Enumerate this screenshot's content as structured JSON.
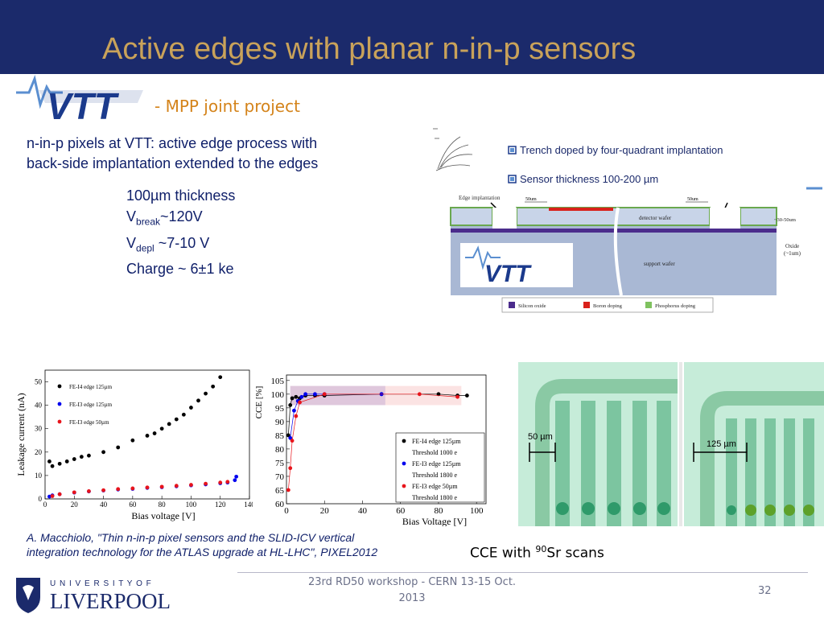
{
  "slide": {
    "title": "Active edges with planar n-in-p sensors",
    "subtitle": "- MPP joint project",
    "intro_line1": "n-in-p pixels at VTT: active edge process with",
    "intro_line2": "back-side implantation extended to the edges",
    "thickness": "100µm thickness",
    "vbreak_V": "V",
    "vbreak_sub": "break",
    "vbreak_val": "~120V",
    "vdepl_V": "V",
    "vdepl_sub": "depl",
    "vdepl_val": " ~7-10 V",
    "charge": "Charge ~ 6±1 ke",
    "citation_line1": "A. Macchiolo, \"Thin n-in-p pixel sensors and the SLID-ICV vertical",
    "citation_line2": "integration technology for the ATLAS upgrade at HL-LHC\", PIXEL2012",
    "cce_pre": "CCE with ",
    "cce_sup": "90",
    "cce_post": "Sr scans",
    "footer_line1": "23rd RD50 workshop - CERN 13-15 Oct.",
    "footer_line2": "2013",
    "page_number": "32",
    "colors": {
      "title_bar": "#1b2a6b",
      "title_text": "#c9a25a",
      "body_text": "#10206a",
      "subtitle": "#d4831a"
    }
  },
  "logos": {
    "vtt_text": "VTT",
    "liverpool_top": "U N I V E R S I T Y   O F",
    "liverpool_bottom": "LIVERPOOL"
  },
  "diagram": {
    "legend_trench": "Trench doped by four-quadrant implantation",
    "legend_thickness": "Sensor thickness 100-200 µm",
    "edge_implantation": "Edge implantation",
    "dim_left": "50um",
    "dim_right": "50um",
    "detector_wafer": "detector wafer",
    "support_wafer": "support wafer",
    "thickness_label": "~30-50um",
    "oxide_label_1": "Oxide",
    "oxide_label_2": "(~1um)",
    "logo_text": "VTT",
    "key_oxide": "Silicon oxide",
    "key_boron": "Boron doping",
    "key_phosphorus": "Phosphorus doping"
  },
  "scan": {
    "label_left": "50 µm",
    "label_right": "125 µm"
  },
  "chart_data": [
    {
      "type": "scatter",
      "xlabel": "Bias voltage [V]",
      "ylabel": "Leakage current (nA)",
      "xlim": [
        0,
        140
      ],
      "ylim": [
        0,
        55
      ],
      "xticks": [
        0,
        20,
        40,
        60,
        80,
        100,
        120,
        140
      ],
      "yticks": [
        0,
        10,
        20,
        30,
        40,
        50
      ],
      "legend_position": "top-left",
      "grid": false,
      "series": [
        {
          "name": "FE-I4 edge 125µm",
          "color": "#000000",
          "x": [
            3,
            5,
            10,
            15,
            20,
            25,
            30,
            40,
            50,
            60,
            70,
            75,
            80,
            85,
            90,
            95,
            100,
            105,
            110,
            115,
            120
          ],
          "y": [
            16,
            14,
            15,
            16,
            17,
            18,
            18.5,
            20,
            22,
            25,
            27,
            28,
            30,
            32,
            34,
            36,
            39,
            42,
            45,
            48,
            52
          ]
        },
        {
          "name": "FE-I3 edge 125µm",
          "color": "#0000ee",
          "x": [
            3,
            5,
            10,
            20,
            30,
            40,
            50,
            60,
            70,
            80,
            90,
            100,
            110,
            120,
            125,
            130,
            131
          ],
          "y": [
            1.0,
            1.5,
            2.0,
            2.7,
            3.2,
            3.6,
            4.0,
            4.3,
            4.7,
            5.0,
            5.4,
            5.8,
            6.2,
            6.7,
            7.0,
            8.0,
            9.5
          ]
        },
        {
          "name": "FE-I3 edge 50µm",
          "color": "#e8141b",
          "x": [
            5,
            10,
            20,
            30,
            40,
            50,
            60,
            70,
            80,
            90,
            100,
            110,
            120,
            125
          ],
          "y": [
            1.2,
            2.0,
            2.8,
            3.3,
            3.7,
            4.2,
            4.5,
            4.9,
            5.2,
            5.6,
            6.0,
            6.5,
            7.0,
            7.3
          ]
        }
      ]
    },
    {
      "type": "scatter",
      "xlabel": "Bias Voltage [V]",
      "ylabel": "CCE [%]",
      "xlim": [
        0,
        105
      ],
      "ylim": [
        60,
        107
      ],
      "xticks": [
        0,
        20,
        40,
        60,
        80,
        100
      ],
      "yticks": [
        60,
        65,
        70,
        75,
        80,
        85,
        90,
        95,
        100,
        105
      ],
      "legend_position": "bottom-right",
      "grid": false,
      "series": [
        {
          "name": "FE-I4 edge 125µm",
          "legend_extra": "Threshold 1000 e",
          "color": "#000000",
          "x": [
            1,
            2,
            3,
            5,
            7,
            10,
            15,
            20,
            50,
            80,
            90,
            95
          ],
          "y": [
            85,
            96,
            98.5,
            99,
            98.5,
            99.5,
            99.5,
            99.5,
            100,
            100,
            99.5,
            99.5
          ]
        },
        {
          "name": "FE-I3  edge 125µm",
          "legend_extra": "Threshold 1800 e",
          "color": "#0000ee",
          "x": [
            2,
            4,
            6,
            8,
            10,
            15,
            20,
            50
          ],
          "y": [
            84,
            94,
            97.5,
            99,
            100,
            100,
            100,
            100
          ]
        },
        {
          "name": "FE-I3 edge 50µm",
          "legend_extra": "Threshold 1800 e",
          "color": "#e8141b",
          "x": [
            1,
            2,
            3,
            5,
            7,
            20,
            70,
            90
          ],
          "y": [
            65,
            73,
            83,
            92,
            97,
            100,
            100,
            99
          ]
        }
      ]
    }
  ]
}
